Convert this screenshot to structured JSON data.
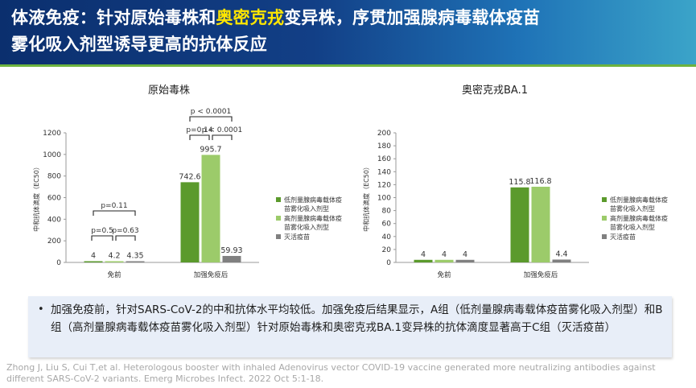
{
  "title": {
    "part1": "体液免疫：针对原始毒株和",
    "highlight": "奥密克戎",
    "part2": "变异株，序贯加强腺病毒载体疫苗",
    "line2": "雾化吸入剂型诱导更高的抗体反应"
  },
  "colors": {
    "low_dose": "#5b9a2c",
    "high_dose": "#9ccb6a",
    "inactivated": "#808080",
    "highlight": "#ffe600"
  },
  "chart_data": [
    {
      "type": "bar",
      "title": "原始毒株",
      "ylabel": "中和抗体滴度（EC50）",
      "ylim": [
        0,
        1200
      ],
      "yticks": [
        "0",
        "200",
        "400",
        "600",
        "800",
        "1000",
        "1200"
      ],
      "categories": [
        "免前",
        "加强免疫后"
      ],
      "series": [
        {
          "name": "低剂量腺病毒载体疫苗雾化吸入剂型",
          "values": [
            4,
            742.6
          ],
          "labels": [
            "4",
            "742.6"
          ]
        },
        {
          "name": "高剂量腺病毒载体疫苗雾化吸入剂型",
          "values": [
            4.2,
            995.7
          ],
          "labels": [
            "4.2",
            "995.7"
          ]
        },
        {
          "name": "灭活疫苗",
          "values": [
            4.35,
            59.93
          ],
          "labels": [
            "4.35",
            "59.93"
          ]
        }
      ],
      "annotations": [
        "p=0.11",
        "p=0.5",
        "p=0.63",
        "p < 0.0001",
        "p=0.14",
        "p < 0.0001"
      ]
    },
    {
      "type": "bar",
      "title": "奥密克戎BA.1",
      "ylabel": "中和抗体滴度（EC50）",
      "ylim": [
        0,
        200
      ],
      "yticks": [
        "0",
        "20",
        "40",
        "60",
        "80",
        "100",
        "120",
        "140",
        "160",
        "180",
        "200"
      ],
      "categories": [
        "免前",
        "加强免疫后"
      ],
      "series": [
        {
          "name": "低剂量腺病毒载体疫苗雾化吸入剂型",
          "values": [
            4,
            115.8
          ],
          "labels": [
            "4",
            "115.8"
          ]
        },
        {
          "name": "高剂量腺病毒载体疫苗雾化吸入剂型",
          "values": [
            4,
            116.8
          ],
          "labels": [
            "4",
            "116.8"
          ]
        },
        {
          "name": "灭活疫苗",
          "values": [
            4,
            4.4
          ],
          "labels": [
            "4",
            "4.4"
          ]
        }
      ]
    }
  ],
  "note": "加强免疫前，针对SARS-CoV-2的中和抗体水平均较低。加强免疫后结果显示，A组（低剂量腺病毒载体疫苗雾化吸入剂型）和B组（高剂量腺病毒载体疫苗雾化吸入剂型）针对原始毒株和奥密克戎BA.1变异株的抗体滴度显著高于C组（灭活疫苗）",
  "bullet": "•",
  "reference": "Zhong J, Liu S, Cui T,et al. Heterologous booster with inhaled Adenovirus vector COVID-19 vaccine generated more neutralizing antibodies against different SARS-CoV-2 variants. Emerg Microbes Infect. 2022 Oct 5:1-18."
}
